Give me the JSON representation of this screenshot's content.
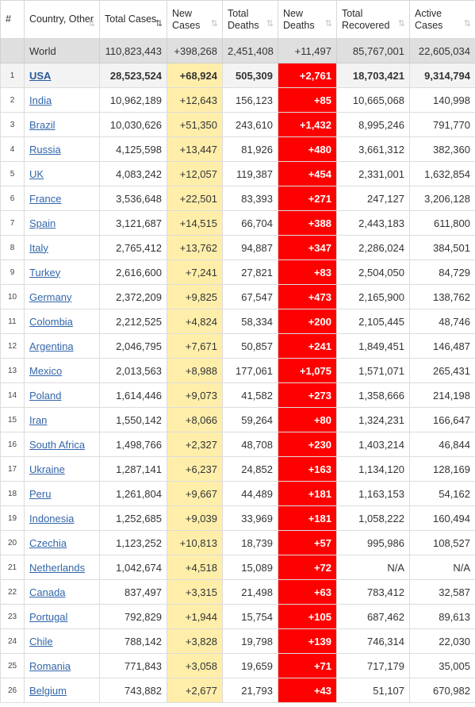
{
  "headers": [
    {
      "label": "#",
      "sort": ""
    },
    {
      "label": "Country, Other",
      "sort": "⇅"
    },
    {
      "label": "Total Cases",
      "sort": "⇅"
    },
    {
      "label": "New Cases",
      "sort": "⇅"
    },
    {
      "label": "Total Deaths",
      "sort": "⇅"
    },
    {
      "label": "New Deaths",
      "sort": "⇅"
    },
    {
      "label": "Total Recovered",
      "sort": "⇅"
    },
    {
      "label": "Active Cases",
      "sort": "⇅"
    }
  ],
  "world": {
    "country": "World",
    "total_cases": "110,823,443",
    "new_cases": "+398,268",
    "total_deaths": "2,451,408",
    "new_deaths": "+11,497",
    "total_recovered": "85,767,001",
    "active_cases": "22,605,034"
  },
  "rows": [
    {
      "rank": "1",
      "country": "USA",
      "total_cases": "28,523,524",
      "new_cases": "+68,924",
      "total_deaths": "505,309",
      "new_deaths": "+2,761",
      "total_recovered": "18,703,421",
      "active_cases": "9,314,794"
    },
    {
      "rank": "2",
      "country": "India",
      "total_cases": "10,962,189",
      "new_cases": "+12,643",
      "total_deaths": "156,123",
      "new_deaths": "+85",
      "total_recovered": "10,665,068",
      "active_cases": "140,998"
    },
    {
      "rank": "3",
      "country": "Brazil",
      "total_cases": "10,030,626",
      "new_cases": "+51,350",
      "total_deaths": "243,610",
      "new_deaths": "+1,432",
      "total_recovered": "8,995,246",
      "active_cases": "791,770"
    },
    {
      "rank": "4",
      "country": "Russia",
      "total_cases": "4,125,598",
      "new_cases": "+13,447",
      "total_deaths": "81,926",
      "new_deaths": "+480",
      "total_recovered": "3,661,312",
      "active_cases": "382,360"
    },
    {
      "rank": "5",
      "country": "UK",
      "total_cases": "4,083,242",
      "new_cases": "+12,057",
      "total_deaths": "119,387",
      "new_deaths": "+454",
      "total_recovered": "2,331,001",
      "active_cases": "1,632,854"
    },
    {
      "rank": "6",
      "country": "France",
      "total_cases": "3,536,648",
      "new_cases": "+22,501",
      "total_deaths": "83,393",
      "new_deaths": "+271",
      "total_recovered": "247,127",
      "active_cases": "3,206,128"
    },
    {
      "rank": "7",
      "country": "Spain",
      "total_cases": "3,121,687",
      "new_cases": "+14,515",
      "total_deaths": "66,704",
      "new_deaths": "+388",
      "total_recovered": "2,443,183",
      "active_cases": "611,800"
    },
    {
      "rank": "8",
      "country": "Italy",
      "total_cases": "2,765,412",
      "new_cases": "+13,762",
      "total_deaths": "94,887",
      "new_deaths": "+347",
      "total_recovered": "2,286,024",
      "active_cases": "384,501"
    },
    {
      "rank": "9",
      "country": "Turkey",
      "total_cases": "2,616,600",
      "new_cases": "+7,241",
      "total_deaths": "27,821",
      "new_deaths": "+83",
      "total_recovered": "2,504,050",
      "active_cases": "84,729"
    },
    {
      "rank": "10",
      "country": "Germany",
      "total_cases": "2,372,209",
      "new_cases": "+9,825",
      "total_deaths": "67,547",
      "new_deaths": "+473",
      "total_recovered": "2,165,900",
      "active_cases": "138,762"
    },
    {
      "rank": "11",
      "country": "Colombia",
      "total_cases": "2,212,525",
      "new_cases": "+4,824",
      "total_deaths": "58,334",
      "new_deaths": "+200",
      "total_recovered": "2,105,445",
      "active_cases": "48,746"
    },
    {
      "rank": "12",
      "country": "Argentina",
      "total_cases": "2,046,795",
      "new_cases": "+7,671",
      "total_deaths": "50,857",
      "new_deaths": "+241",
      "total_recovered": "1,849,451",
      "active_cases": "146,487"
    },
    {
      "rank": "13",
      "country": "Mexico",
      "total_cases": "2,013,563",
      "new_cases": "+8,988",
      "total_deaths": "177,061",
      "new_deaths": "+1,075",
      "total_recovered": "1,571,071",
      "active_cases": "265,431"
    },
    {
      "rank": "14",
      "country": "Poland",
      "total_cases": "1,614,446",
      "new_cases": "+9,073",
      "total_deaths": "41,582",
      "new_deaths": "+273",
      "total_recovered": "1,358,666",
      "active_cases": "214,198"
    },
    {
      "rank": "15",
      "country": "Iran",
      "total_cases": "1,550,142",
      "new_cases": "+8,066",
      "total_deaths": "59,264",
      "new_deaths": "+80",
      "total_recovered": "1,324,231",
      "active_cases": "166,647"
    },
    {
      "rank": "16",
      "country": "South Africa",
      "total_cases": "1,498,766",
      "new_cases": "+2,327",
      "total_deaths": "48,708",
      "new_deaths": "+230",
      "total_recovered": "1,403,214",
      "active_cases": "46,844"
    },
    {
      "rank": "17",
      "country": "Ukraine",
      "total_cases": "1,287,141",
      "new_cases": "+6,237",
      "total_deaths": "24,852",
      "new_deaths": "+163",
      "total_recovered": "1,134,120",
      "active_cases": "128,169"
    },
    {
      "rank": "18",
      "country": "Peru",
      "total_cases": "1,261,804",
      "new_cases": "+9,667",
      "total_deaths": "44,489",
      "new_deaths": "+181",
      "total_recovered": "1,163,153",
      "active_cases": "54,162"
    },
    {
      "rank": "19",
      "country": "Indonesia",
      "total_cases": "1,252,685",
      "new_cases": "+9,039",
      "total_deaths": "33,969",
      "new_deaths": "+181",
      "total_recovered": "1,058,222",
      "active_cases": "160,494"
    },
    {
      "rank": "20",
      "country": "Czechia",
      "total_cases": "1,123,252",
      "new_cases": "+10,813",
      "total_deaths": "18,739",
      "new_deaths": "+57",
      "total_recovered": "995,986",
      "active_cases": "108,527"
    },
    {
      "rank": "21",
      "country": "Netherlands",
      "total_cases": "1,042,674",
      "new_cases": "+4,518",
      "total_deaths": "15,089",
      "new_deaths": "+72",
      "total_recovered": "N/A",
      "active_cases": "N/A"
    },
    {
      "rank": "22",
      "country": "Canada",
      "total_cases": "837,497",
      "new_cases": "+3,315",
      "total_deaths": "21,498",
      "new_deaths": "+63",
      "total_recovered": "783,412",
      "active_cases": "32,587"
    },
    {
      "rank": "23",
      "country": "Portugal",
      "total_cases": "792,829",
      "new_cases": "+1,944",
      "total_deaths": "15,754",
      "new_deaths": "+105",
      "total_recovered": "687,462",
      "active_cases": "89,613"
    },
    {
      "rank": "24",
      "country": "Chile",
      "total_cases": "788,142",
      "new_cases": "+3,828",
      "total_deaths": "19,798",
      "new_deaths": "+139",
      "total_recovered": "746,314",
      "active_cases": "22,030"
    },
    {
      "rank": "25",
      "country": "Romania",
      "total_cases": "771,843",
      "new_cases": "+3,058",
      "total_deaths": "19,659",
      "new_deaths": "+71",
      "total_recovered": "717,179",
      "active_cases": "35,005"
    },
    {
      "rank": "26",
      "country": "Belgium",
      "total_cases": "743,882",
      "new_cases": "+2,677",
      "total_deaths": "21,793",
      "new_deaths": "+43",
      "total_recovered": "51,107",
      "active_cases": "670,982"
    }
  ],
  "colors": {
    "new_cases_bg": "#ffeeaa",
    "new_deaths_bg": "#ff0000",
    "link": "#3366aa",
    "world_bg": "#dfdfdf"
  }
}
